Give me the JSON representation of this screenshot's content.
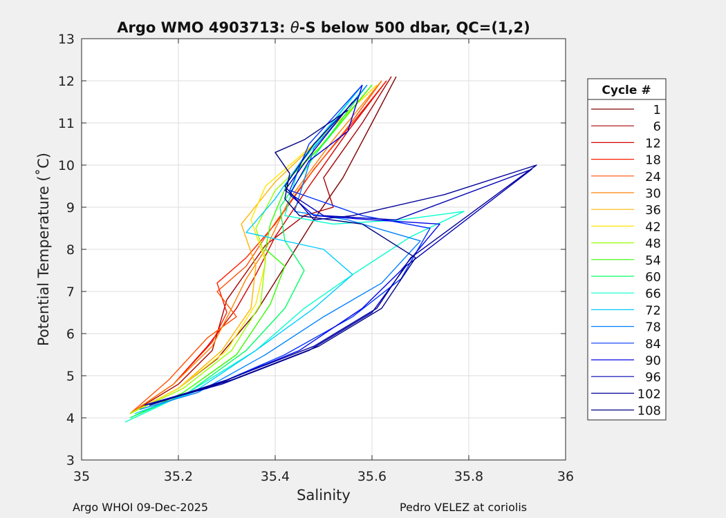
{
  "chart_data": {
    "type": "line",
    "title": "Argo WMO 4903713: θ-S below 500 dbar,  QC=(1,2)",
    "title_prefix": "Argo WMO 4903713: ",
    "title_theta": "θ",
    "title_suffix": "-S below 500 dbar,  QC=(1,2)",
    "xlabel": "Salinity",
    "ylabel": "Potential Temperature (˚C)",
    "xlim": [
      35,
      36
    ],
    "ylim": [
      3,
      13
    ],
    "xticks": [
      35,
      35.2,
      35.4,
      35.6,
      35.8,
      36
    ],
    "xtick_labels": [
      "35",
      "35.2",
      "35.4",
      "35.6",
      "35.8",
      "36"
    ],
    "yticks": [
      3,
      4,
      5,
      6,
      7,
      8,
      9,
      10,
      11,
      12,
      13
    ],
    "ytick_labels": [
      "3",
      "4",
      "5",
      "6",
      "7",
      "8",
      "9",
      "10",
      "11",
      "12",
      "13"
    ],
    "grid": true,
    "legend_title": "Cycle #",
    "legend_position": "right-outside",
    "series": [
      {
        "name": "1",
        "color": "#800000",
        "s": [
          35.1,
          35.2,
          35.28,
          35.36,
          35.42,
          35.48,
          35.54,
          35.6,
          35.65
        ],
        "t": [
          4.1,
          4.7,
          5.4,
          6.5,
          7.6,
          8.7,
          9.7,
          11.0,
          12.1
        ]
      },
      {
        "name": "6",
        "color": "#aa0000",
        "s": [
          35.1,
          35.2,
          35.27,
          35.3,
          35.38,
          35.46,
          35.52,
          35.5,
          35.58,
          35.64
        ],
        "t": [
          4.1,
          4.8,
          5.6,
          6.8,
          8.1,
          8.8,
          9.0,
          9.7,
          11.0,
          12.1
        ]
      },
      {
        "name": "12",
        "color": "#d40000",
        "s": [
          35.1,
          35.19,
          35.26,
          35.32,
          35.36,
          35.4,
          35.47,
          35.55,
          35.63
        ],
        "t": [
          4.1,
          4.8,
          5.7,
          6.6,
          7.4,
          8.3,
          9.5,
          10.8,
          12.0
        ]
      },
      {
        "name": "18",
        "color": "#ff1a00",
        "s": [
          35.1,
          35.19,
          35.27,
          35.3,
          35.28,
          35.34,
          35.4,
          35.48,
          35.56,
          35.63
        ],
        "t": [
          4.1,
          4.8,
          5.8,
          6.5,
          7.2,
          7.8,
          8.6,
          9.9,
          11.0,
          12.0
        ]
      },
      {
        "name": "24",
        "color": "#ff4d00",
        "s": [
          35.1,
          35.18,
          35.26,
          35.32,
          35.28,
          35.34,
          35.38,
          35.46,
          35.55,
          35.62
        ],
        "t": [
          4.1,
          4.9,
          5.9,
          6.4,
          7.0,
          7.6,
          8.3,
          9.6,
          10.9,
          12.0
        ]
      },
      {
        "name": "30",
        "color": "#ff8000",
        "s": [
          35.1,
          35.19,
          35.27,
          35.31,
          35.34,
          35.38,
          35.43,
          35.52,
          35.62
        ],
        "t": [
          4.1,
          4.8,
          5.7,
          6.6,
          7.3,
          8.0,
          9.2,
          10.6,
          12.0
        ]
      },
      {
        "name": "36",
        "color": "#ffb300",
        "s": [
          35.1,
          35.2,
          35.29,
          35.35,
          35.36,
          35.33,
          35.4,
          35.5,
          35.61
        ],
        "t": [
          4.1,
          4.7,
          5.6,
          6.6,
          7.6,
          8.6,
          9.6,
          10.7,
          11.9
        ]
      },
      {
        "name": "42",
        "color": "#ffe600",
        "s": [
          35.1,
          35.2,
          35.3,
          35.36,
          35.38,
          35.35,
          35.38,
          35.48,
          35.61
        ],
        "t": [
          4.1,
          4.7,
          5.6,
          6.7,
          7.7,
          8.7,
          9.5,
          10.5,
          11.9
        ]
      },
      {
        "name": "48",
        "color": "#99ff00",
        "s": [
          35.1,
          35.21,
          35.31,
          35.37,
          35.38,
          35.36,
          35.4,
          35.49,
          35.6
        ],
        "t": [
          4.1,
          4.7,
          5.6,
          6.7,
          7.8,
          8.5,
          9.4,
          10.4,
          11.9
        ]
      },
      {
        "name": "54",
        "color": "#33ff00",
        "s": [
          35.1,
          35.21,
          35.32,
          35.39,
          35.42,
          35.38,
          35.39,
          35.43,
          35.5,
          35.6
        ],
        "t": [
          4.0,
          4.6,
          5.5,
          6.7,
          7.6,
          8.0,
          8.6,
          9.7,
          10.5,
          11.9
        ]
      },
      {
        "name": "60",
        "color": "#00ff66",
        "s": [
          35.1,
          35.22,
          35.34,
          35.42,
          35.46,
          35.42,
          35.41,
          35.48,
          35.59
        ],
        "t": [
          4.0,
          4.6,
          5.6,
          6.6,
          7.5,
          8.2,
          9.0,
          10.2,
          11.9
        ]
      },
      {
        "name": "66",
        "color": "#00ffcc",
        "s": [
          35.09,
          35.22,
          35.36,
          35.46,
          35.56,
          35.68,
          35.79,
          35.66,
          35.52,
          35.42,
          35.45,
          35.58
        ],
        "t": [
          3.9,
          4.6,
          5.6,
          6.6,
          7.4,
          8.3,
          8.9,
          8.7,
          8.6,
          8.8,
          10.0,
          11.9
        ]
      },
      {
        "name": "72",
        "color": "#00ccff",
        "s": [
          35.11,
          35.23,
          35.36,
          35.48,
          35.56,
          35.5,
          35.34,
          35.4,
          35.46,
          35.58
        ],
        "t": [
          4.1,
          4.6,
          5.6,
          6.6,
          7.4,
          8.0,
          8.4,
          9.2,
          10.2,
          11.9
        ]
      },
      {
        "name": "78",
        "color": "#0080ff",
        "s": [
          35.12,
          35.24,
          35.38,
          35.5,
          35.62,
          35.7,
          35.55,
          35.44,
          35.48,
          35.59
        ],
        "t": [
          4.2,
          4.6,
          5.5,
          6.4,
          7.2,
          8.2,
          8.7,
          8.9,
          10.4,
          11.9
        ]
      },
      {
        "name": "84",
        "color": "#0033ff",
        "s": [
          35.13,
          35.26,
          35.42,
          35.56,
          35.66,
          35.72,
          35.58,
          35.43,
          35.47,
          35.58
        ],
        "t": [
          4.3,
          4.7,
          5.5,
          6.4,
          7.3,
          8.5,
          8.8,
          9.4,
          10.5,
          11.9
        ]
      },
      {
        "name": "90",
        "color": "#0000e6",
        "s": [
          35.13,
          35.28,
          35.45,
          35.58,
          35.66,
          35.74,
          35.6,
          35.48,
          35.43,
          35.47,
          35.55,
          35.58
        ],
        "t": [
          4.3,
          4.8,
          5.6,
          6.6,
          7.5,
          8.6,
          8.7,
          8.8,
          9.3,
          10.1,
          10.8,
          11.9
        ]
      },
      {
        "name": "96",
        "color": "#0000b3",
        "s": [
          35.13,
          35.29,
          35.47,
          35.6,
          35.67,
          35.93,
          35.65,
          35.5,
          35.42,
          35.47,
          35.56
        ],
        "t": [
          4.3,
          4.8,
          5.6,
          6.5,
          7.6,
          9.9,
          8.7,
          8.8,
          9.4,
          10.2,
          11.5
        ]
      },
      {
        "name": "102",
        "color": "#000099",
        "s": [
          35.14,
          35.3,
          35.48,
          35.61,
          35.68,
          35.94,
          35.75,
          35.56,
          35.48,
          35.42,
          35.48,
          35.57
        ],
        "t": [
          4.3,
          4.9,
          5.7,
          6.6,
          7.8,
          10.0,
          9.3,
          8.8,
          8.7,
          9.5,
          10.5,
          11.6
        ]
      },
      {
        "name": "108",
        "color": "#000080",
        "s": [
          35.14,
          35.31,
          35.49,
          35.62,
          35.69,
          35.58,
          35.45,
          35.42,
          35.43,
          35.4,
          35.46,
          35.55
        ],
        "t": [
          4.3,
          4.9,
          5.7,
          6.6,
          7.8,
          8.6,
          8.8,
          9.2,
          9.8,
          10.3,
          10.6,
          11.3
        ]
      }
    ]
  },
  "footer": {
    "left": "Argo WHOI 09-Dec-2025",
    "right": "Pedro VELEZ at coriolis"
  }
}
